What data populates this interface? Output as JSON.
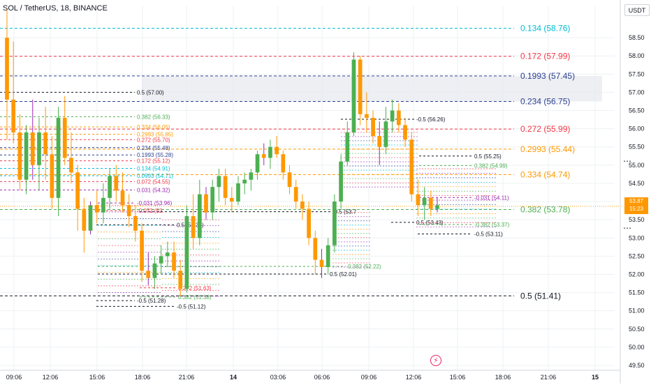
{
  "header": {
    "symbol_title": "SOL / TetherUS, 18, BINANCE",
    "currency": "USDT",
    "last_price": "53.87",
    "last_price_sub": "15:23"
  },
  "colors": {
    "up": "#4caf50",
    "down": "#ff9800",
    "wick_up": "#4caf50",
    "wick_down": "#ff9800",
    "wick_accent": "#9c27b0",
    "axis_text": "#131722",
    "grid": "#eef0f3",
    "zone": "#e6e8ee",
    "event": "#e91e63"
  },
  "chart_data": {
    "type": "candlestick",
    "title": "SOL / TetherUS, 18, BINANCE",
    "y_axis": {
      "unit": "USDT",
      "ylim": [
        49.5,
        59.0
      ],
      "ticks": [
        "58.50",
        "58.00",
        "57.50",
        "57.00",
        "56.50",
        "56.00",
        "55.50",
        "55.00",
        "54.50",
        "54.00",
        "53.50",
        "53.00",
        "52.50",
        "52.00",
        "51.50",
        "51.00",
        "50.50",
        "50.00",
        "49.50"
      ]
    },
    "x_axis": {
      "ticks": [
        "09:06",
        "12:06",
        "15:06",
        "18:06",
        "21:06",
        "14",
        "03:06",
        "06:06",
        "09:06",
        "12:06",
        "15:06",
        "18:06",
        "21:06",
        "15"
      ]
    },
    "candles": [
      [
        58.5,
        59.3,
        55.7,
        56.8
      ],
      [
        56.8,
        58.4,
        55.6,
        55.9
      ],
      [
        55.9,
        56.4,
        54.3,
        54.6
      ],
      [
        54.6,
        56.1,
        54.2,
        55.9
      ],
      [
        55.9,
        56.8,
        54.6,
        55.0
      ],
      [
        55.0,
        56.3,
        54.3,
        55.9
      ],
      [
        55.9,
        56.6,
        54.6,
        55.3
      ],
      [
        55.3,
        55.8,
        53.8,
        54.1
      ],
      [
        54.1,
        56.6,
        53.6,
        56.3
      ],
      [
        56.3,
        56.9,
        55.0,
        55.2
      ],
      [
        55.2,
        55.9,
        54.5,
        54.8
      ],
      [
        54.8,
        55.0,
        53.2,
        53.8
      ],
      [
        53.8,
        54.1,
        52.6,
        53.2
      ],
      [
        53.2,
        54.0,
        53.1,
        53.9
      ],
      [
        53.9,
        54.3,
        53.4,
        53.7
      ],
      [
        53.7,
        54.5,
        53.4,
        54.1
      ],
      [
        54.1,
        54.9,
        53.8,
        54.7
      ],
      [
        54.7,
        55.0,
        54.0,
        54.3
      ],
      [
        54.3,
        54.8,
        53.7,
        53.9
      ],
      [
        53.9,
        54.2,
        53.3,
        53.6
      ],
      [
        53.6,
        53.9,
        52.9,
        53.2
      ],
      [
        53.2,
        53.4,
        51.8,
        52.1
      ],
      [
        52.1,
        52.6,
        51.7,
        51.9
      ],
      [
        51.9,
        52.5,
        51.6,
        52.3
      ],
      [
        52.3,
        52.8,
        52.0,
        52.5
      ],
      [
        52.5,
        52.9,
        52.2,
        52.6
      ],
      [
        52.6,
        52.9,
        51.9,
        52.1
      ],
      [
        52.1,
        52.4,
        51.4,
        51.6
      ],
      [
        51.6,
        53.9,
        51.5,
        53.6
      ],
      [
        53.6,
        54.2,
        52.7,
        53.0
      ],
      [
        53.0,
        54.6,
        52.8,
        54.2
      ],
      [
        54.2,
        54.4,
        53.5,
        53.7
      ],
      [
        53.7,
        54.6,
        53.5,
        54.4
      ],
      [
        54.4,
        54.9,
        54.0,
        54.7
      ],
      [
        54.7,
        54.9,
        53.9,
        54.1
      ],
      [
        54.1,
        54.4,
        53.7,
        54.0
      ],
      [
        54.0,
        54.7,
        53.9,
        54.5
      ],
      [
        54.5,
        54.8,
        54.2,
        54.6
      ],
      [
        54.6,
        54.9,
        54.3,
        54.8
      ],
      [
        54.8,
        55.4,
        54.6,
        55.3
      ],
      [
        55.3,
        55.6,
        55.0,
        55.2
      ],
      [
        55.2,
        55.7,
        54.9,
        55.5
      ],
      [
        55.5,
        55.8,
        55.2,
        55.3
      ],
      [
        55.3,
        55.4,
        54.6,
        54.8
      ],
      [
        54.8,
        55.0,
        54.2,
        54.4
      ],
      [
        54.4,
        54.6,
        53.8,
        54.0
      ],
      [
        54.0,
        54.2,
        53.5,
        53.8
      ],
      [
        53.8,
        54.0,
        52.8,
        53.0
      ],
      [
        53.0,
        53.2,
        52.0,
        52.4
      ],
      [
        52.4,
        52.7,
        51.9,
        52.2
      ],
      [
        52.2,
        53.0,
        52.0,
        52.8
      ],
      [
        52.8,
        54.2,
        52.6,
        54.0
      ],
      [
        54.0,
        55.3,
        53.8,
        55.1
      ],
      [
        55.1,
        56.2,
        55.0,
        55.9
      ],
      [
        55.9,
        58.1,
        55.8,
        57.9
      ],
      [
        57.9,
        58.0,
        56.1,
        56.4
      ],
      [
        56.4,
        57.0,
        55.9,
        56.3
      ],
      [
        56.3,
        56.5,
        55.6,
        55.8
      ],
      [
        55.8,
        56.2,
        55.0,
        55.5
      ],
      [
        55.5,
        56.6,
        55.3,
        56.2
      ],
      [
        56.2,
        56.8,
        55.9,
        56.5
      ],
      [
        56.5,
        56.7,
        55.9,
        56.1
      ],
      [
        56.1,
        56.3,
        55.5,
        55.7
      ],
      [
        55.7,
        55.9,
        54.0,
        54.2
      ],
      [
        54.2,
        54.6,
        53.6,
        53.9
      ],
      [
        53.9,
        54.4,
        53.5,
        54.1
      ],
      [
        54.1,
        54.3,
        53.6,
        53.8
      ],
      [
        53.8,
        54.1,
        53.7,
        53.9
      ]
    ],
    "levels_right": [
      {
        "label": "0.134 (58.76)",
        "value": 58.76,
        "color": "#00bcd4"
      },
      {
        "label": "0.172 (57.99)",
        "value": 57.99,
        "color": "#f23645"
      },
      {
        "label": "0.1993 (57.45)",
        "value": 57.45,
        "color": "#2a3f8f"
      },
      {
        "label": "0.234 (56.75)",
        "value": 56.75,
        "color": "#2a3f8f"
      },
      {
        "label": "0.272 (55.99)",
        "value": 55.99,
        "color": "#f23645"
      },
      {
        "label": "0.2993 (55.44)",
        "value": 55.44,
        "color": "#ff9800"
      },
      {
        "label": "0.334 (54.74)",
        "value": 54.74,
        "color": "#ff9800"
      },
      {
        "label": "0.382 (53.78)",
        "value": 53.78,
        "color": "#4caf50"
      },
      {
        "label": "0.5 (51.41)",
        "value": 51.41,
        "color": "#131722"
      }
    ],
    "levels_left": [
      {
        "label": "0.5 (57.00)",
        "value": 57.0,
        "color": "#131722"
      },
      {
        "label": "0.382 (56.33)",
        "value": 56.33,
        "color": "#4caf50"
      },
      {
        "label": "0.334 (56.05)",
        "value": 56.05,
        "color": "#ff9800"
      },
      {
        "label": "0.2993 (55.85)",
        "value": 55.85,
        "color": "#ff9800"
      },
      {
        "label": "0.272 (55.70)",
        "value": 55.7,
        "color": "#f23645"
      },
      {
        "label": "0.234 (55.48)",
        "value": 55.48,
        "color": "#2a3f8f"
      },
      {
        "label": "0.1993 (55.28)",
        "value": 55.28,
        "color": "#2a3f8f"
      },
      {
        "label": "0.172 (55.12)",
        "value": 55.12,
        "color": "#f23645"
      },
      {
        "label": "0.134 (54.91)",
        "value": 54.91,
        "color": "#00bcd4"
      },
      {
        "label": "0.0993 (54.71)",
        "value": 54.71,
        "color": "#00bcd4"
      },
      {
        "label": "0.072 (54.55)",
        "value": 54.55,
        "color": "#f23645"
      },
      {
        "label": "0.031 (54.32)",
        "value": 54.32,
        "color": "#9c27b0"
      }
    ],
    "levels_mid": [
      {
        "label": "-0.031 (53.96)",
        "value": 53.96,
        "color": "#9c27b0"
      },
      {
        "label": "-0.072 (53.",
        "value": 53.75,
        "color": "#f23645"
      },
      {
        "label": "0.5 (53.36)",
        "value": 53.36,
        "color": "#131722"
      },
      {
        "label": "-0.5 (51.28)",
        "value": 51.28,
        "color": "#131722"
      },
      {
        "label": "-0.5 (51.12)",
        "value": 51.12,
        "color": "#131722"
      },
      {
        "label": "0.382 (51.38)",
        "value": 51.38,
        "color": "#4caf50"
      },
      {
        "label": "0.272 (51.63)",
        "value": 51.63,
        "color": "#f23645"
      },
      {
        "label": "0.5 (52.01)",
        "value": 52.01,
        "color": "#131722"
      },
      {
        "label": "0.382 (52.22)",
        "value": 52.22,
        "color": "#4caf50"
      },
      {
        "label": "-0.5 (53.7",
        "value": 53.72,
        "color": "#131722"
      }
    ],
    "levels_recent": [
      {
        "label": "-0.5 (56.26)",
        "value": 56.26,
        "color": "#131722"
      },
      {
        "label": "0.5 (55.25)",
        "value": 55.25,
        "color": "#131722"
      },
      {
        "label": "0.382 (54.99)",
        "value": 54.99,
        "color": "#4caf50"
      },
      {
        "label": "-0.031 (54.11)",
        "value": 54.11,
        "color": "#9c27b0"
      },
      {
        "label": "0.5 (53.43)",
        "value": 53.43,
        "color": "#131722"
      },
      {
        "label": "-0.382 (53.37)",
        "value": 53.37,
        "color": "#4caf50"
      },
      {
        "label": "-0.5 (53.11)",
        "value": 53.11,
        "color": "#131722"
      }
    ]
  }
}
